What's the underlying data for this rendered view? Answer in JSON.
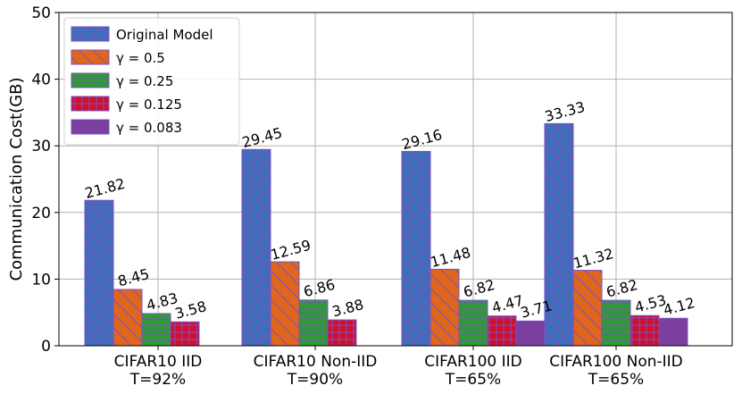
{
  "chart_data": {
    "type": "bar",
    "title": "",
    "xlabel": "",
    "ylabel": "Communication Cost(GB)",
    "ylim": [
      0,
      50
    ],
    "yticks": [
      0,
      10,
      20,
      30,
      40,
      50
    ],
    "grid": true,
    "legend_position": "top-left",
    "categories": [
      [
        "CIFAR10 IID",
        "T=92%"
      ],
      [
        "CIFAR10 Non-IID",
        "T=90%"
      ],
      [
        "CIFAR100 IID",
        "T=65%"
      ],
      [
        "CIFAR100 Non-IID",
        "T=65%"
      ]
    ],
    "series": [
      {
        "name": "Original Model",
        "color": "#3d6fb8",
        "hatch": "cross",
        "values": [
          21.82,
          29.45,
          29.16,
          33.33
        ],
        "labels": [
          "21.82",
          "29.45",
          "29.16",
          "33.33"
        ]
      },
      {
        "name": "γ = 0.5",
        "color": "#e0661c",
        "hatch": "backslash",
        "values": [
          8.45,
          12.59,
          11.48,
          11.32
        ],
        "labels": [
          "8.45",
          "12.59",
          "11.48",
          "11.32"
        ]
      },
      {
        "name": "γ = 0.25",
        "color": "#2f9b34",
        "hatch": "horizontal",
        "values": [
          4.83,
          6.86,
          6.82,
          6.82
        ],
        "labels": [
          "4.83",
          "6.86",
          "6.82",
          "6.82"
        ]
      },
      {
        "name": "γ = 0.125",
        "color": "#d0102b",
        "hatch": "grid",
        "values": [
          3.58,
          3.88,
          4.47,
          4.53
        ],
        "labels": [
          "3.58",
          "3.88",
          "4.47",
          "4.53"
        ]
      },
      {
        "name": "γ = 0.083",
        "color": "#7b3f9e",
        "hatch": "none",
        "values": [
          null,
          null,
          3.71,
          4.12
        ],
        "labels": [
          null,
          null,
          "3.71",
          "4.12"
        ]
      }
    ]
  }
}
